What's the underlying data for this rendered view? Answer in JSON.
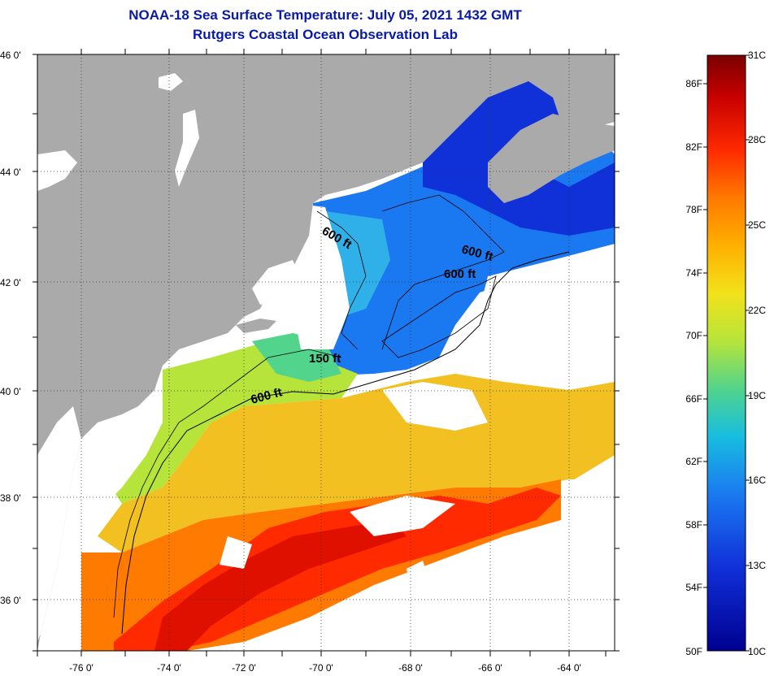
{
  "title": "NOAA-18 Sea Surface Temperature:  July 05, 2021 1432 GMT",
  "subtitle": "Rutgers Coastal Ocean Observation Lab",
  "lat_labels": [
    "46 0'",
    "44 0'",
    "42 0'",
    "40 0'",
    "38 0'",
    "36 0'"
  ],
  "lon_labels": [
    "-76 0'",
    "-74 0'",
    "-72 0'",
    "-70 0'",
    "-68 0'",
    "-66 0'",
    "-64 0'"
  ],
  "contours": [
    "600 ft",
    "600 ft",
    "600 ft",
    "150 ft",
    "600 ft"
  ],
  "colorbar": {
    "f_labels": [
      "86F",
      "82F",
      "78F",
      "74F",
      "70F",
      "66F",
      "62F",
      "58F",
      "54F",
      "50F"
    ],
    "c_labels": [
      "31C",
      "28C",
      "25C",
      "22C",
      "19C",
      "16C",
      "13C",
      "10C"
    ],
    "colors": [
      "#7a0000",
      "#c80000",
      "#ff2a00",
      "#ff7a00",
      "#ffb000",
      "#f2e21a",
      "#b6e43a",
      "#52d48c",
      "#18bde0",
      "#1a78f0",
      "#1030d8",
      "#000090"
    ]
  },
  "colors": {
    "land": "#aaaaaa",
    "cloud": "#ffffff",
    "title": "#0a1aa8"
  }
}
